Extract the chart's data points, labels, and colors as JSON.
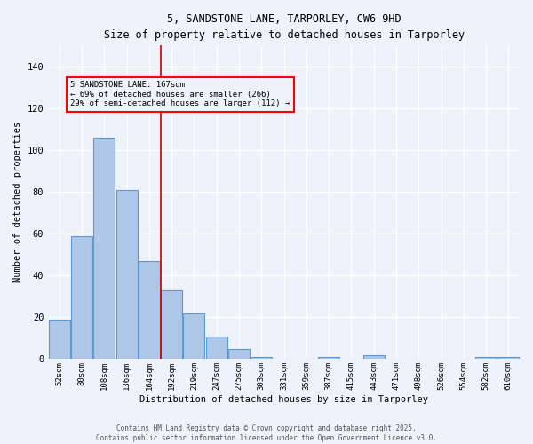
{
  "title_line1": "5, SANDSTONE LANE, TARPORLEY, CW6 9HD",
  "title_line2": "Size of property relative to detached houses in Tarporley",
  "xlabel": "Distribution of detached houses by size in Tarporley",
  "ylabel": "Number of detached properties",
  "bin_labels": [
    "52sqm",
    "80sqm",
    "108sqm",
    "136sqm",
    "164sqm",
    "192sqm",
    "219sqm",
    "247sqm",
    "275sqm",
    "303sqm",
    "331sqm",
    "359sqm",
    "387sqm",
    "415sqm",
    "443sqm",
    "471sqm",
    "498sqm",
    "526sqm",
    "554sqm",
    "582sqm",
    "610sqm"
  ],
  "bar_values": [
    19,
    59,
    106,
    81,
    47,
    33,
    22,
    11,
    5,
    1,
    0,
    0,
    1,
    0,
    2,
    0,
    0,
    0,
    0,
    1,
    1
  ],
  "bar_color": "#aec6e8",
  "bar_edge_color": "#5b9bd5",
  "ylim": [
    0,
    150
  ],
  "yticks": [
    0,
    20,
    40,
    60,
    80,
    100,
    120,
    140
  ],
  "vline_x_index": 4,
  "vline_color": "#cc0000",
  "annotation_text": "5 SANDSTONE LANE: 167sqm\n← 69% of detached houses are smaller (266)\n29% of semi-detached houses are larger (112) →",
  "background_color": "#eef2fb",
  "grid_color": "#ffffff",
  "footer_line1": "Contains HM Land Registry data © Crown copyright and database right 2025.",
  "footer_line2": "Contains public sector information licensed under the Open Government Licence v3.0."
}
